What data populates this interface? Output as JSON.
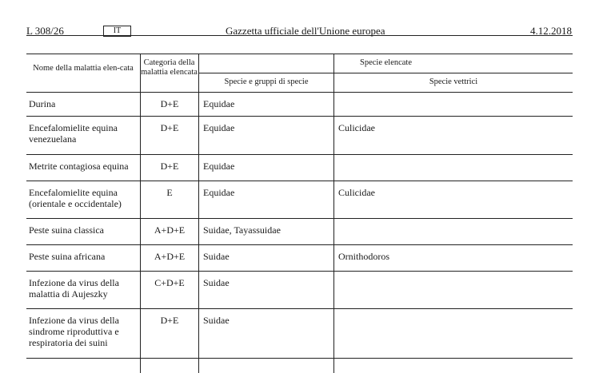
{
  "header": {
    "page": "L 308/26",
    "lang": "IT",
    "title": "Gazzetta ufficiale dell'Unione europea",
    "date": "4.12.2018"
  },
  "table": {
    "headers": {
      "name": "Nome della malattia elen-cata",
      "category": "Categoria della malattia elencata",
      "species": "Specie elencate",
      "species_groups": "Specie e gruppi di specie",
      "vectors": "Specie vettrici"
    },
    "rows": [
      {
        "name": "Durina",
        "category": "D+E",
        "species": "Equidae",
        "vectors": ""
      },
      {
        "name": "Encefalomielite equina venezuelana",
        "category": "D+E",
        "species": "Equidae",
        "vectors": "Culicidae"
      },
      {
        "name": "Metrite contagiosa equina",
        "category": "D+E",
        "species": "Equidae",
        "vectors": ""
      },
      {
        "name": "Encefalomielite equina (orientale e occidentale)",
        "category": "E",
        "species": "Equidae",
        "vectors": "Culicidae"
      },
      {
        "name": "Peste suina classica",
        "category": "A+D+E",
        "species": "Suidae, Tayassuidae",
        "vectors": ""
      },
      {
        "name": "Peste suina africana",
        "category": "A+D+E",
        "species": "Suidae",
        "vectors": "Ornithodoros"
      },
      {
        "name": "Infezione da virus della malattia di Aujeszky",
        "category": "C+D+E",
        "species": "Suidae",
        "vectors": ""
      },
      {
        "name": "Infezione da virus della sindrome riproduttiva e respiratoria dei suini",
        "category": "D+E",
        "species": "Suidae",
        "vectors": ""
      }
    ]
  }
}
